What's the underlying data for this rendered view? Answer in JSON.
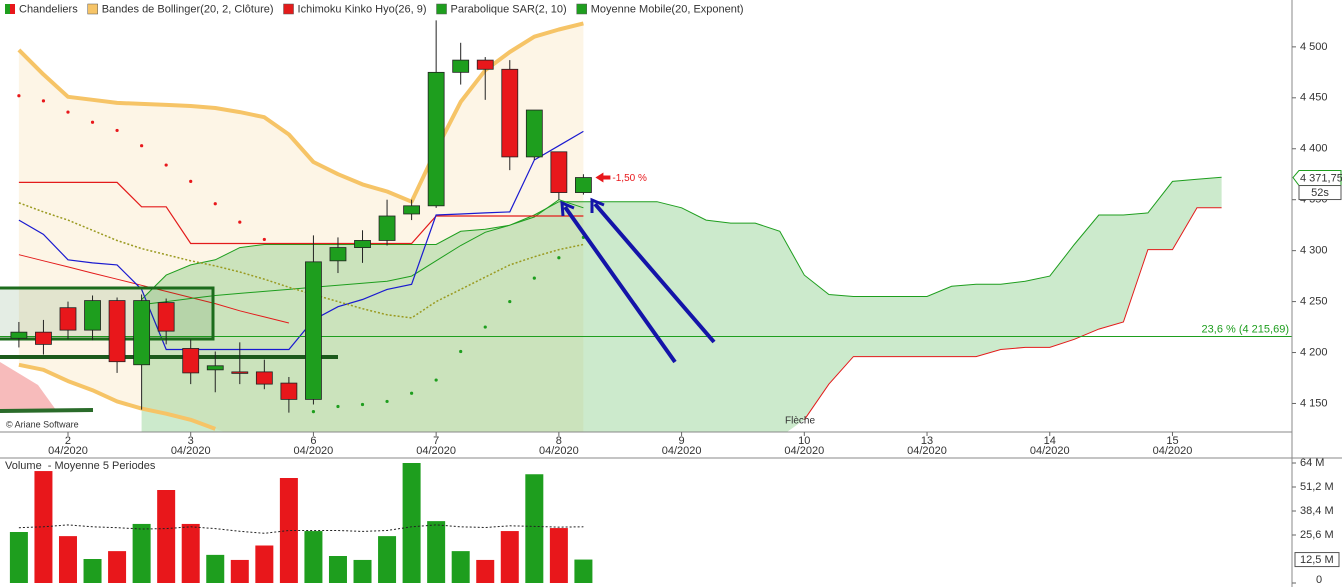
{
  "chart_data": {
    "type": "candlestick",
    "legend": [
      {
        "name": "Chandeliers"
      },
      {
        "name": "Bandes de Bollinger(20, 2, Clôture)",
        "color": "#f6c467"
      },
      {
        "name": "Ichimoku Kinko Hyo(26, 9)",
        "color": "#e31b1b"
      },
      {
        "name": "Parabolique SAR(2, 10)",
        "color": "#1e9e1e"
      },
      {
        "name": "Moyenne Mobile(20, Exponent)",
        "color": "#1e9e1e"
      }
    ],
    "up_color": "#1e9e1e",
    "down_color": "#e8171b",
    "xlim": [
      -0.77,
      51.87
    ],
    "xticks": [
      {
        "value": 2,
        "label": "2",
        "sublabel": "04/2020"
      },
      {
        "value": 7,
        "label": "3",
        "sublabel": "04/2020"
      },
      {
        "value": 12,
        "label": "6",
        "sublabel": "04/2020"
      },
      {
        "value": 17,
        "label": "7",
        "sublabel": "04/2020"
      },
      {
        "value": 22,
        "label": "8",
        "sublabel": "04/2020"
      },
      {
        "value": 27,
        "label": "9",
        "sublabel": "04/2020"
      },
      {
        "value": 32,
        "label": "10",
        "sublabel": "04/2020"
      },
      {
        "value": 37,
        "label": "13",
        "sublabel": "04/2020"
      },
      {
        "value": 42,
        "label": "14",
        "sublabel": "04/2020"
      },
      {
        "value": 47,
        "label": "15",
        "sublabel": "04/2020"
      }
    ],
    "ylim": [
      4122,
      4546
    ],
    "yticks": [
      {
        "value": 4500,
        "label": "4 500"
      },
      {
        "value": 4450,
        "label": "4 450"
      },
      {
        "value": 4400,
        "label": "4 400"
      },
      {
        "value": 4350,
        "label": "4 350"
      },
      {
        "value": 4300,
        "label": "4 300"
      },
      {
        "value": 4250,
        "label": "4 250"
      },
      {
        "value": 4200,
        "label": "4 200"
      },
      {
        "value": 4150,
        "label": "4 150"
      }
    ],
    "candles": {
      "open": [
        4214,
        4220,
        4244,
        4222,
        4251,
        4188,
        4249,
        4204,
        4183,
        4181,
        4181,
        4170,
        4154,
        4290,
        4303,
        4310,
        4336,
        4344,
        4475,
        4487,
        4478,
        4392,
        4397,
        4357
      ],
      "high": [
        4230,
        4232,
        4250,
        4256,
        4254,
        4257,
        4253,
        4213,
        4201,
        4210,
        4193,
        4176,
        4315,
        4313,
        4320,
        4350,
        4350,
        4526,
        4504,
        4490,
        4487,
        4438,
        4397,
        4375
      ],
      "low": [
        4205,
        4198,
        4213,
        4212,
        4180,
        4144,
        4208,
        4169,
        4161,
        4169,
        4164,
        4141,
        4149,
        4278,
        4288,
        4305,
        4330,
        4342,
        4463,
        4448,
        4379,
        4389,
        4350,
        4355
      ],
      "close": [
        4220,
        4208,
        4222,
        4251,
        4191,
        4251,
        4221,
        4180,
        4187,
        4180,
        4169,
        4154,
        4289,
        4303,
        4310,
        4334,
        4344,
        4475,
        4487,
        4478,
        4392,
        4438,
        4357,
        4371.75
      ]
    },
    "last_label": "4 371,75",
    "timer": "52s",
    "change_label": "-1,50 %",
    "bollinger": {
      "color": "#f6c467",
      "upper": [
        4497,
        4473,
        4451,
        4448,
        4445,
        4444,
        4443,
        4442,
        4440,
        4436,
        4431,
        4414,
        4387,
        4375,
        4365,
        4358,
        4348,
        4399,
        4446,
        4477,
        4495,
        4510,
        4517,
        4523
      ],
      "lower": [
        4188,
        4183,
        4172,
        4163,
        4152,
        4145,
        4140,
        4134,
        4125,
        null,
        null,
        null,
        null,
        null,
        null,
        null,
        null,
        null,
        null,
        null,
        null,
        null,
        null,
        null
      ]
    },
    "ichimoku": {
      "tenkan_color": "#1a1ad0",
      "kijun_color": "#e31b1b",
      "span_color": "#1e9e1e",
      "tenkan": [
        4330,
        4316,
        4291,
        4288,
        4286,
        4262,
        4203,
        4203,
        4203,
        4203,
        4203,
        4203,
        4232,
        4245,
        4252,
        4262,
        4267,
        4335,
        4336,
        4337,
        4338,
        4389,
        4403,
        4417
      ],
      "kijun": [
        4367,
        4367,
        4367,
        4367,
        4367,
        4343,
        4343,
        4307,
        4307,
        4307,
        4307,
        4307,
        4307,
        4307,
        4307,
        4307,
        4307,
        4334,
        4334,
        4334,
        4334,
        4334,
        4334,
        4334
      ],
      "lagging": [
        4296,
        4290,
        4284,
        4278,
        4272,
        4266,
        4260,
        4254,
        4248,
        4241,
        4235,
        4229
      ],
      "span": [
        null,
        null,
        null,
        null,
        null,
        4247,
        4250,
        4253,
        4256,
        4258,
        4260,
        4262,
        4264,
        4266,
        4268,
        4270,
        4275,
        4290,
        4305,
        4318,
        4325,
        4333,
        4350,
        4342
      ],
      "senkou_a": [
        null,
        null,
        null,
        null,
        null,
        4252,
        4276,
        4286,
        4291,
        4303,
        4306,
        4306,
        4306,
        4306,
        4306,
        4306,
        4306,
        4306,
        4319,
        4321,
        4325,
        4335,
        4348,
        4348,
        4348,
        4348,
        4348,
        4342,
        4330,
        4327,
        4327,
        4319,
        4276,
        4257,
        4255,
        4255,
        4255,
        4255,
        4265,
        4267,
        4267,
        4270,
        4275,
        4306,
        4335,
        4335,
        4337,
        4368,
        4370,
        4372
      ],
      "senkou_b": [
        null,
        null,
        null,
        null,
        null,
        null,
        null,
        null,
        null,
        null,
        null,
        null,
        null,
        null,
        null,
        null,
        null,
        null,
        null,
        null,
        null,
        null,
        null,
        null,
        null,
        null,
        null,
        null,
        null,
        null,
        null,
        null,
        4134,
        4169,
        4196,
        4196,
        4196,
        4196,
        4196,
        4196,
        4203,
        4205,
        4205,
        4213,
        4223,
        4230,
        4301,
        4301,
        4342,
        4342
      ]
    },
    "sar": [
      4452,
      4447,
      4436,
      4426,
      4418,
      4403,
      4384,
      4368,
      4346,
      4328,
      4311,
      null,
      4142,
      4147,
      4149,
      4152,
      4160,
      4173,
      4201,
      4225,
      4250,
      4273,
      4293,
      4313
    ],
    "ema": [
      4347,
      4338,
      4330,
      4320,
      4310,
      4302,
      4296,
      4290,
      4285,
      4279,
      4272,
      4264,
      4257,
      4250,
      4243,
      4237,
      4234,
      4250,
      4262,
      4274,
      4286,
      4294,
      4301,
      4306
    ],
    "ema_color": "#9a9a20",
    "fibonacci": {
      "value": 4215.69,
      "label": "23,6 % (4 215,69)",
      "color": "#1e9e1e"
    },
    "annotation": "Flèche",
    "copyright": "© Ariane Software",
    "volume": {
      "title": "Volume  - Moyenne 5 Periodes",
      "values": [
        27.2,
        59.7,
        25,
        12.8,
        17,
        31.5,
        49.6,
        31.5,
        15,
        12.3,
        20,
        56,
        27.7,
        14.4,
        12.3,
        25,
        64,
        33,
        17,
        12.3,
        27.7,
        58,
        29.3,
        12.5
      ],
      "average": [
        29.5,
        30,
        31,
        30,
        29.5,
        28.8,
        29,
        30,
        29,
        27.6,
        26.5,
        28,
        28,
        28,
        27.5,
        28,
        30,
        31,
        30,
        29.6,
        30.5,
        30.2,
        29.8,
        30
      ],
      "last_label": "12,5 M",
      "ylim": [
        0,
        64
      ],
      "yticks": [
        {
          "value": 64,
          "label": "64 M"
        },
        {
          "value": 51.2,
          "label": "51,2 M"
        },
        {
          "value": 38.4,
          "label": "38,4 M"
        },
        {
          "value": 25.6,
          "label": "25,6 M"
        },
        0
      ]
    }
  }
}
